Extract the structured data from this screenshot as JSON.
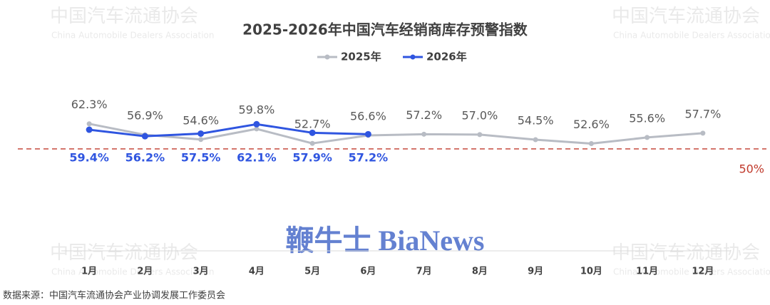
{
  "chart_data": {
    "type": "line",
    "title": "2025-2026年中国汽车经销商库存预警指数",
    "categories": [
      "1月",
      "2月",
      "3月",
      "4月",
      "5月",
      "6月",
      "7月",
      "8月",
      "9月",
      "10月",
      "11月",
      "12月"
    ],
    "series": [
      {
        "name": "2025年",
        "color": "#b8bcc4",
        "values": [
          62.3,
          56.9,
          54.6,
          59.8,
          52.7,
          56.6,
          57.2,
          57.0,
          54.5,
          52.6,
          55.6,
          57.7
        ],
        "value_labels": [
          "62.3%",
          "56.9%",
          "54.6%",
          "59.8%",
          "52.7%",
          "56.6%",
          "57.2%",
          "57.0%",
          "54.5%",
          "52.6%",
          "55.6%",
          "57.7%"
        ]
      },
      {
        "name": "2026年",
        "color": "#2f55e0",
        "values": [
          59.4,
          56.2,
          57.5,
          62.1,
          57.9,
          57.2,
          null,
          null,
          null,
          null,
          null,
          null
        ],
        "value_labels": [
          "59.4%",
          "56.2%",
          "57.5%",
          "62.1%",
          "57.9%",
          "57.2%",
          null,
          null,
          null,
          null,
          null,
          null
        ]
      }
    ],
    "reference": {
      "value": 50,
      "label": "50%",
      "color": "#c0392b"
    },
    "ylim": [
      0,
      65
    ],
    "legend": "top",
    "source": "数据来源：中国汽车流通协会产业协调发展工作委员会",
    "watermark": {
      "cn": "中国汽车流通协会",
      "en": "China Automobile Dealers Association",
      "brand": "鞭牛士 BiaNews"
    }
  }
}
